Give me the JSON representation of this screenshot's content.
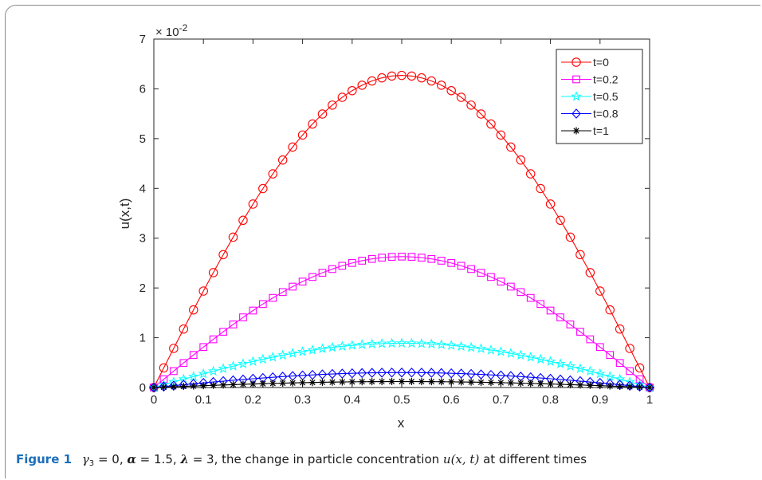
{
  "chart_data": {
    "type": "line",
    "xlabel": "x",
    "ylabel": "u(x,t)",
    "y_multiplier_label": "× 10",
    "y_multiplier_exp": "-2",
    "xlim": [
      0,
      1
    ],
    "ylim": [
      0,
      7
    ],
    "xticks": [
      "0",
      "0.1",
      "0.2",
      "0.3",
      "0.4",
      "0.5",
      "0.6",
      "0.7",
      "0.8",
      "0.9",
      "1"
    ],
    "yticks": [
      "0",
      "1",
      "2",
      "3",
      "4",
      "5",
      "6",
      "7"
    ],
    "legend_position": "top-right",
    "points_per_series": 51,
    "series": [
      {
        "name": "t=0",
        "peak": 6.27,
        "color": "#ff0000",
        "marker": "circle"
      },
      {
        "name": "t=0.2",
        "peak": 2.63,
        "color": "#ff00ff",
        "marker": "square"
      },
      {
        "name": "t=0.5",
        "peak": 0.89,
        "color": "#00ffff",
        "marker": "star"
      },
      {
        "name": "t=0.8",
        "peak": 0.3,
        "color": "#0000ff",
        "marker": "diamond"
      },
      {
        "name": "t=1",
        "peak": 0.12,
        "color": "#000000",
        "marker": "asterisk"
      }
    ]
  },
  "caption": {
    "label": "Figure 1",
    "gamma": "γ",
    "gamma_sub": "3",
    "gamma_rest": " = 0, ",
    "alpha": "α",
    "alpha_rest": " = 1.5, ",
    "lambda": "λ",
    "lambda_rest": " = 3, the change in particle concentration ",
    "func": "u(x, t)",
    "tail": " at different times"
  }
}
